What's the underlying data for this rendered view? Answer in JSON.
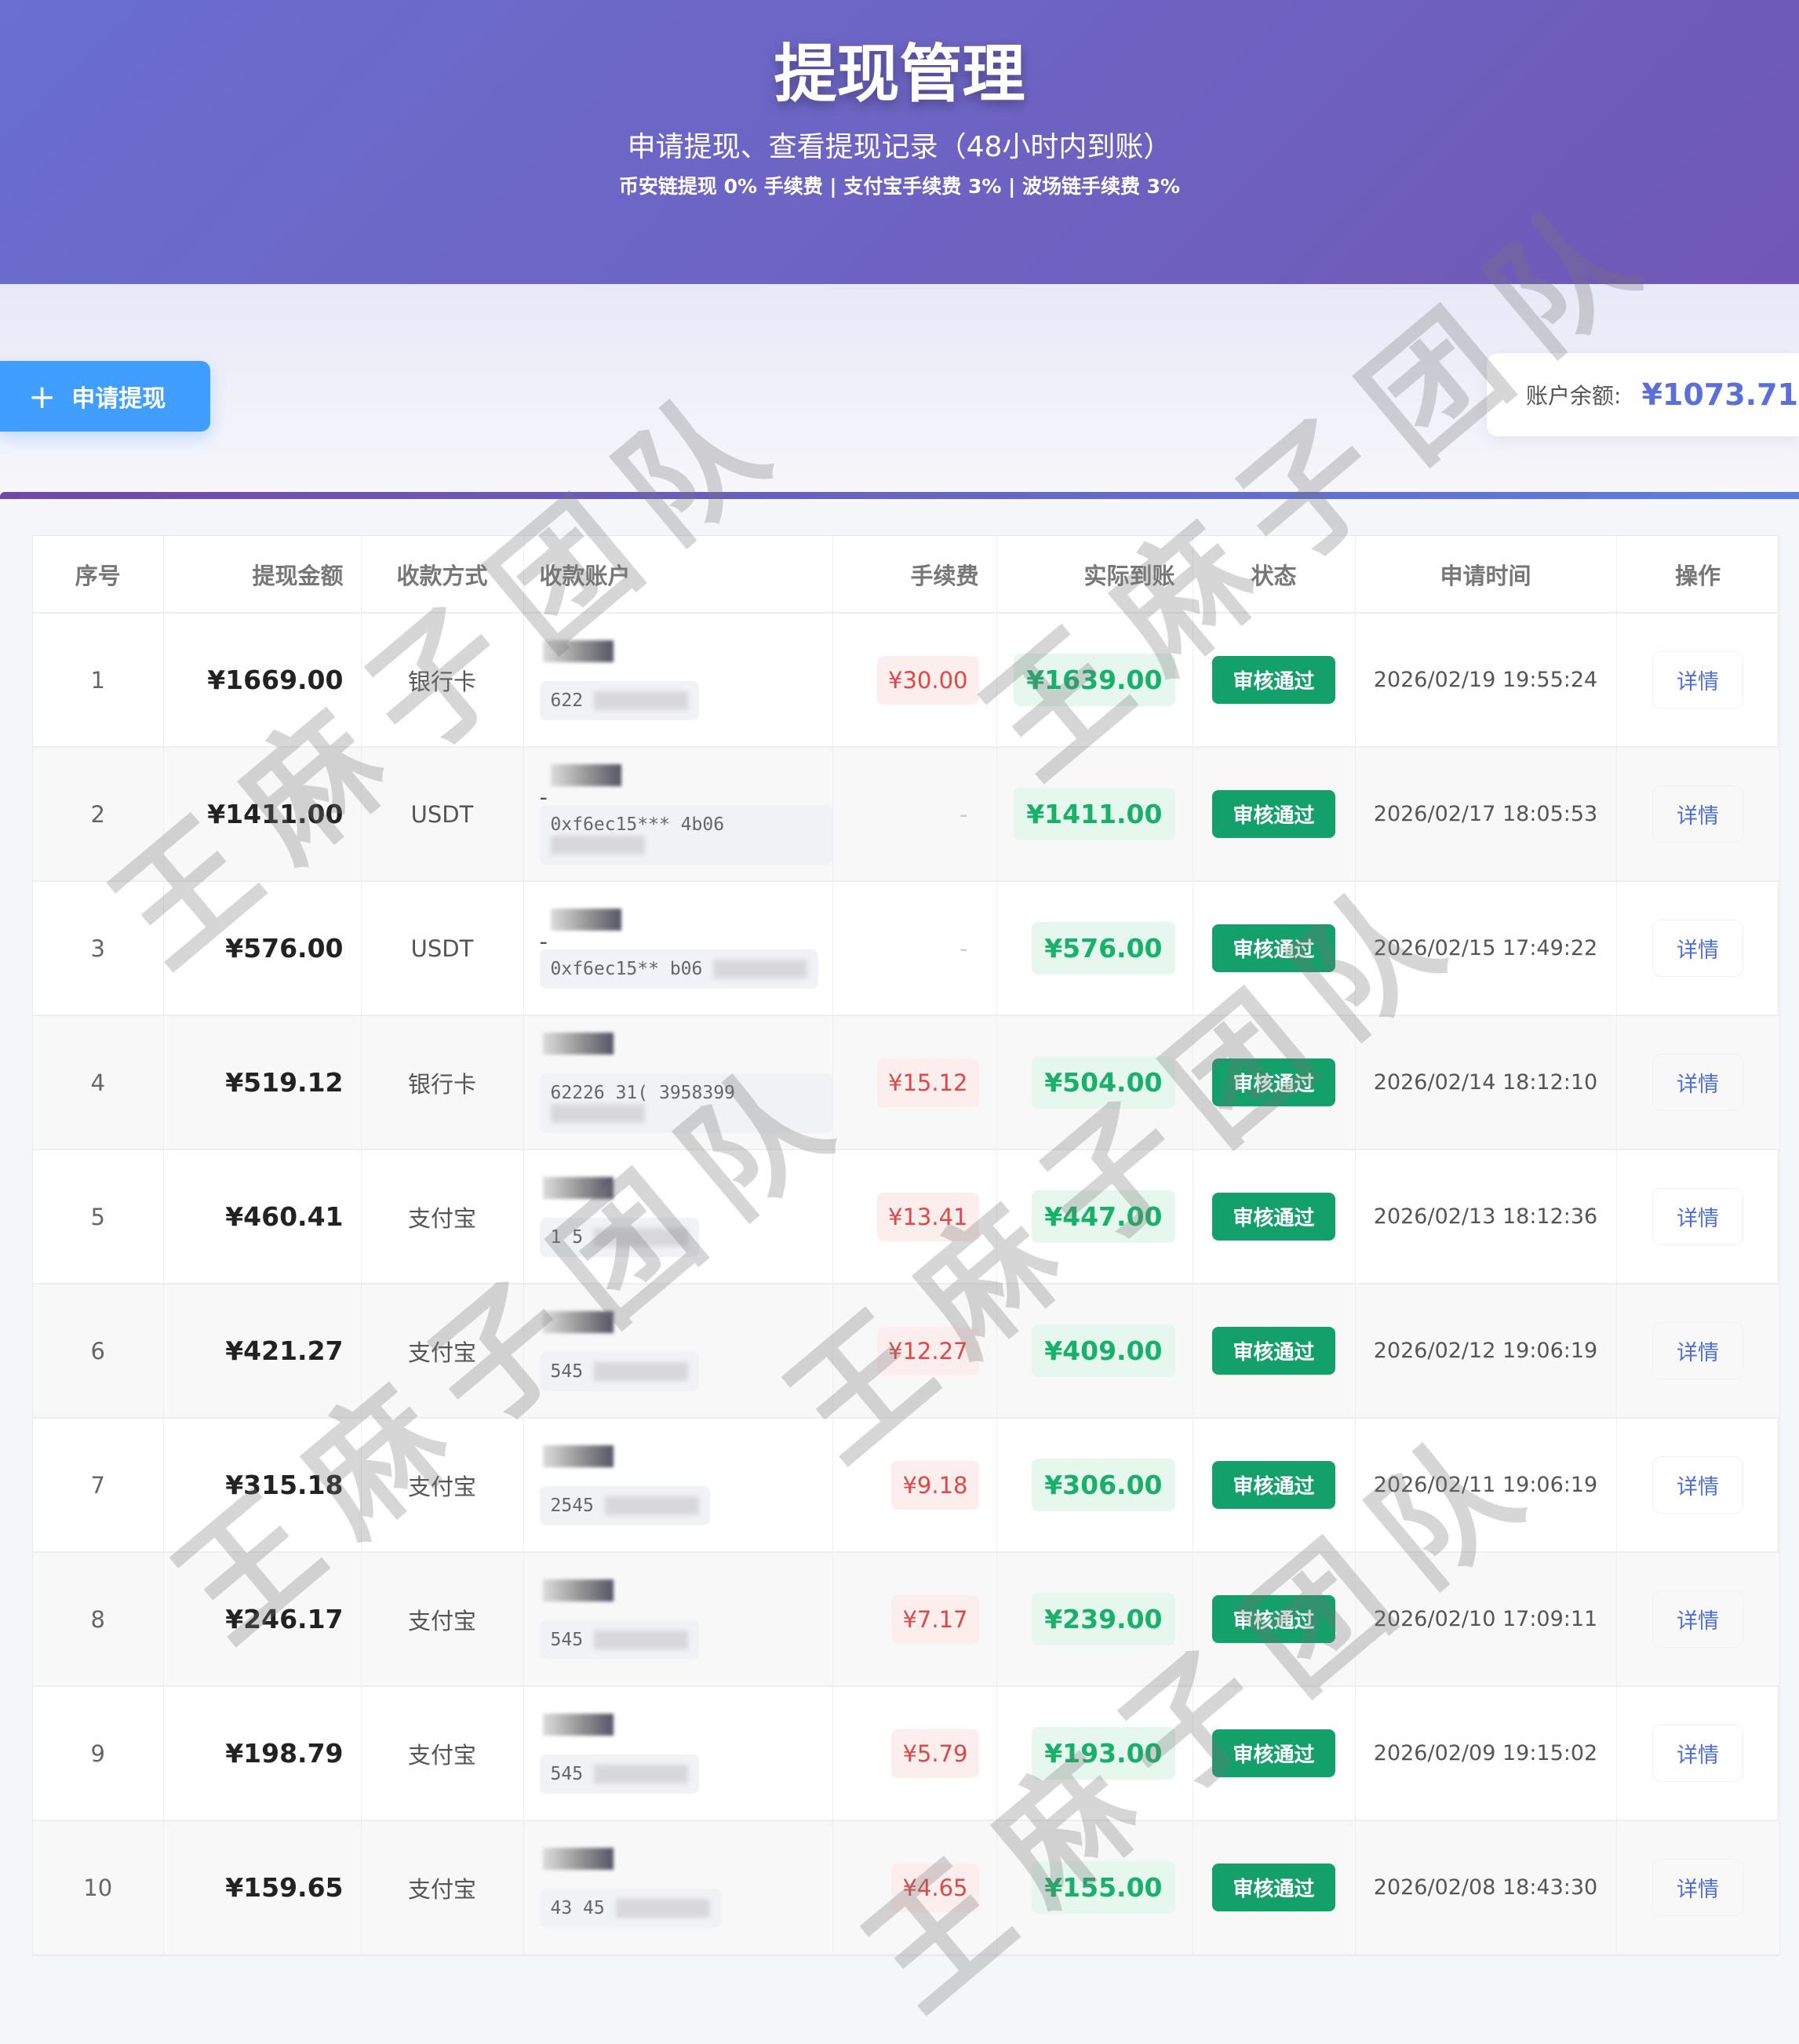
{
  "header": {
    "title": "提现管理",
    "subtitle": "申请提现、查看提现记录（48小时内到账）",
    "fees": "币安链提现 0% 手续费 | 支付宝手续费 3% | 波场链手续费 3%"
  },
  "apply_button": {
    "icon": "plus-icon",
    "label": "申请提现"
  },
  "balance": {
    "label": "账户余额:",
    "value": "¥1073.71"
  },
  "watermark": "王麻子团队",
  "colors": {
    "header_start": "#6a6fd0",
    "header_end": "#7058b6",
    "primary": "#409eff",
    "success": "#13a06a",
    "fee_red": "#e04848"
  },
  "table": {
    "columns": [
      "序号",
      "提现金额",
      "收款方式",
      "收款账户",
      "手续费",
      "实际到账",
      "状态",
      "申请时间",
      "操作"
    ],
    "rows": [
      {
        "no": "1",
        "amount": "¥1669.00",
        "method": "银行卡",
        "account_top": "",
        "account": "622",
        "fee": "¥30.00",
        "actual": "¥1639.00",
        "status": "审核通过",
        "time": "2026/02/19 19:55:24",
        "action": "详情"
      },
      {
        "no": "2",
        "amount": "¥1411.00",
        "method": "USDT",
        "account_top": "-",
        "account": "0xf6ec15*** 4b06",
        "fee": "-",
        "actual": "¥1411.00",
        "status": "审核通过",
        "time": "2026/02/17 18:05:53",
        "action": "详情"
      },
      {
        "no": "3",
        "amount": "¥576.00",
        "method": "USDT",
        "account_top": "-",
        "account": "0xf6ec15** b06",
        "fee": "-",
        "actual": "¥576.00",
        "status": "审核通过",
        "time": "2026/02/15 17:49:22",
        "action": "详情"
      },
      {
        "no": "4",
        "amount": "¥519.12",
        "method": "银行卡",
        "account_top": "",
        "account": "62226 31( 3958399",
        "fee": "¥15.12",
        "actual": "¥504.00",
        "status": "审核通过",
        "time": "2026/02/14 18:12:10",
        "action": "详情"
      },
      {
        "no": "5",
        "amount": "¥460.41",
        "method": "支付宝",
        "account_top": "",
        "account": "1 5",
        "fee": "¥13.41",
        "actual": "¥447.00",
        "status": "审核通过",
        "time": "2026/02/13 18:12:36",
        "action": "详情"
      },
      {
        "no": "6",
        "amount": "¥421.27",
        "method": "支付宝",
        "account_top": "",
        "account": "545",
        "fee": "¥12.27",
        "actual": "¥409.00",
        "status": "审核通过",
        "time": "2026/02/12 19:06:19",
        "action": "详情"
      },
      {
        "no": "7",
        "amount": "¥315.18",
        "method": "支付宝",
        "account_top": "",
        "account": "2545",
        "fee": "¥9.18",
        "actual": "¥306.00",
        "status": "审核通过",
        "time": "2026/02/11 19:06:19",
        "action": "详情"
      },
      {
        "no": "8",
        "amount": "¥246.17",
        "method": "支付宝",
        "account_top": "",
        "account": "545",
        "fee": "¥7.17",
        "actual": "¥239.00",
        "status": "审核通过",
        "time": "2026/02/10 17:09:11",
        "action": "详情"
      },
      {
        "no": "9",
        "amount": "¥198.79",
        "method": "支付宝",
        "account_top": "",
        "account": "545",
        "fee": "¥5.79",
        "actual": "¥193.00",
        "status": "审核通过",
        "time": "2026/02/09 19:15:02",
        "action": "详情"
      },
      {
        "no": "10",
        "amount": "¥159.65",
        "method": "支付宝",
        "account_top": "",
        "account": "43 45",
        "fee": "¥4.65",
        "actual": "¥155.00",
        "status": "审核通过",
        "time": "2026/02/08 18:43:30",
        "action": "详情"
      }
    ]
  }
}
